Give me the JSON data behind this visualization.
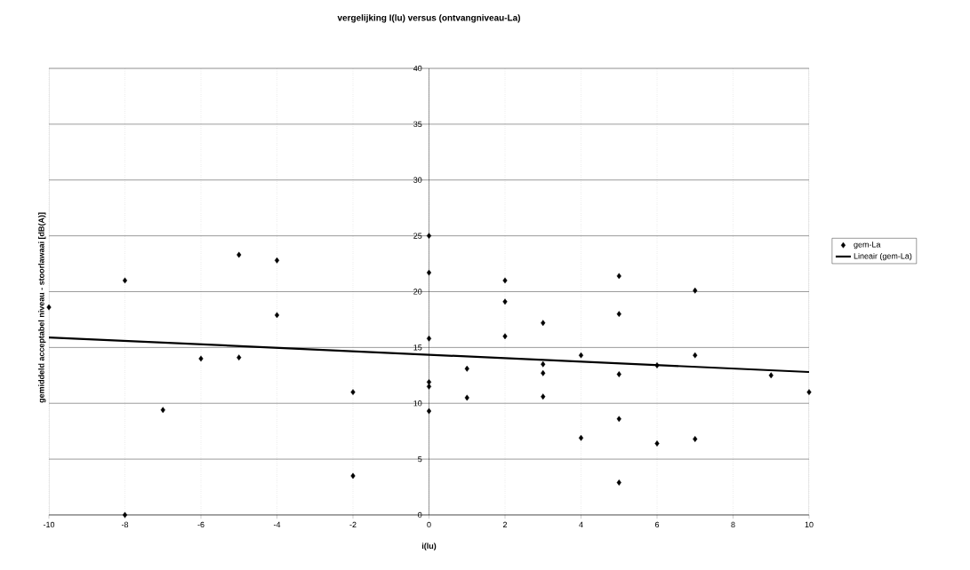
{
  "chart_data": {
    "type": "scatter",
    "title": "vergelijking I(lu) versus (ontvangniveau-La)",
    "xlabel": "i(lu)",
    "ylabel": "gemiddeld acceptabel niveau - stoorlawaai [dB(A)]",
    "xlim": [
      -10,
      10
    ],
    "ylim": [
      0,
      40
    ],
    "xticks": [
      -10,
      -8,
      -6,
      -4,
      -2,
      0,
      2,
      4,
      6,
      8,
      10
    ],
    "yticks": [
      0,
      5,
      10,
      15,
      20,
      25,
      30,
      35,
      40
    ],
    "grid": true,
    "legend": "right",
    "marker": "diamond",
    "series": [
      {
        "name": "gem-La",
        "color": "#000000",
        "x": [
          -10,
          -8,
          -8,
          -7,
          -6,
          -5,
          -5,
          -4,
          -4,
          -2,
          -2,
          0,
          0,
          0,
          0,
          0,
          0,
          1,
          1,
          2,
          2,
          2,
          3,
          3,
          3,
          3,
          4,
          4,
          5,
          5,
          5,
          5,
          5,
          6,
          6,
          7,
          7,
          7,
          9,
          10
        ],
        "values": [
          18.6,
          21.0,
          0,
          9.4,
          14.0,
          14.1,
          23.3,
          22.8,
          17.9,
          11.0,
          3.5,
          25,
          21.7,
          15.8,
          11.9,
          11.5,
          9.3,
          13.1,
          10.5,
          21.0,
          19.1,
          16.0,
          17.2,
          13.5,
          12.7,
          10.6,
          14.3,
          6.9,
          21.4,
          18.0,
          12.6,
          8.6,
          2.9,
          13.4,
          6.4,
          20.1,
          14.3,
          6.8,
          12.5,
          11.0
        ]
      },
      {
        "name": "Lineair (gem-La)",
        "type": "line",
        "color": "#000000",
        "marker": "none",
        "x": [
          -10,
          10
        ],
        "values": [
          15.9,
          12.8
        ]
      }
    ]
  }
}
